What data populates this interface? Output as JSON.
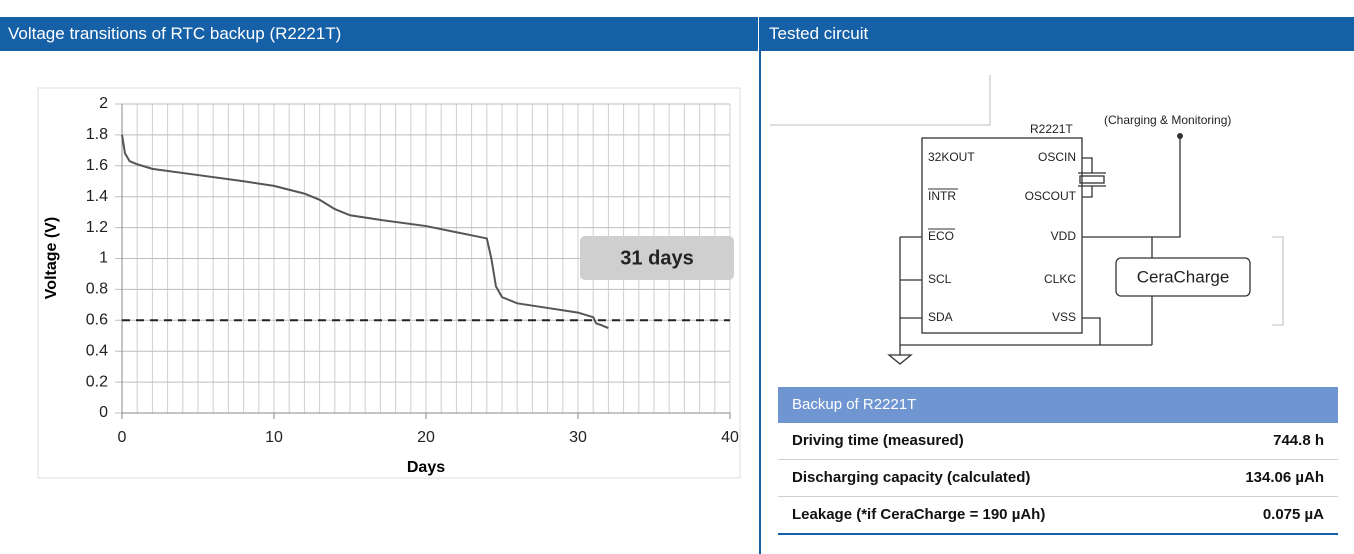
{
  "panels": {
    "left_title": "Voltage transitions of RTC backup (R2221T)",
    "right_title": "Tested circuit"
  },
  "chart_data": {
    "type": "line",
    "xlabel": "Days",
    "ylabel": "Voltage (V)",
    "x": [
      0,
      0.2,
      0.5,
      1,
      2,
      5,
      8,
      10,
      12,
      13,
      14,
      15,
      17,
      20,
      22,
      23,
      24,
      24.3,
      24.6,
      25,
      26,
      28,
      30,
      31,
      31.2,
      31.5,
      32
    ],
    "values": [
      1.8,
      1.68,
      1.63,
      1.61,
      1.58,
      1.54,
      1.5,
      1.47,
      1.42,
      1.38,
      1.32,
      1.28,
      1.25,
      1.21,
      1.17,
      1.15,
      1.13,
      1.0,
      0.82,
      0.75,
      0.71,
      0.68,
      0.65,
      0.62,
      0.58,
      0.57,
      0.55
    ],
    "color": "#555555",
    "xlim": [
      0,
      40
    ],
    "xticks": [
      0,
      10,
      20,
      30,
      40
    ],
    "minor_xticks": [
      0,
      1,
      2,
      3,
      4,
      5,
      6,
      7,
      8,
      9,
      10,
      11,
      12,
      13,
      14,
      15,
      16,
      17,
      18,
      19,
      20,
      21,
      22,
      23,
      24,
      25,
      26,
      27,
      28,
      29,
      30,
      31,
      32,
      33,
      34,
      35,
      36,
      37,
      38,
      39,
      40
    ],
    "ylim": [
      0,
      2
    ],
    "yticks": [
      0,
      0.2,
      0.4,
      0.6,
      0.8,
      1,
      1.2,
      1.4,
      1.6,
      1.8,
      2
    ],
    "threshold": 0.6,
    "annotation": "31 days",
    "grid": true
  },
  "circuit": {
    "chip": "R2221T",
    "supply": "(Charging & Monitoring)",
    "pins": [
      "32KOUT",
      "OSCIN",
      "INTR",
      "OSCOUT",
      "ECO",
      "VDD",
      "SCL",
      "CLKC",
      "SDA",
      "VSS"
    ],
    "battery": "CeraCharge"
  },
  "table": {
    "title": "Backup of R2221T",
    "rows": [
      [
        "Driving time (measured)",
        "744.8 h"
      ],
      [
        "Discharging capacity (calculated)",
        "134.06 µAh"
      ],
      [
        "Leakage (*if CeraCharge = 190 µAh)",
        "0.075 µA"
      ]
    ]
  }
}
